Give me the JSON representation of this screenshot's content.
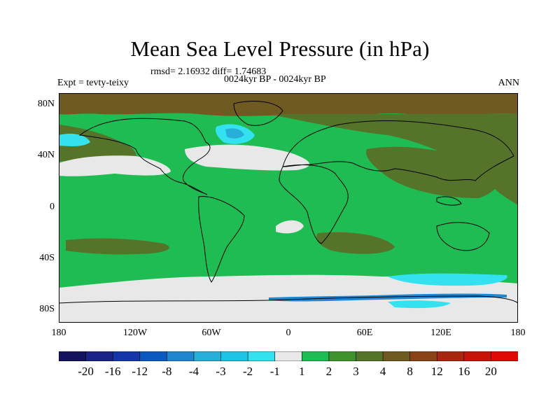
{
  "title": "Mean Sea Level Pressure (in hPa)",
  "stats": "rmsd= 2.16932 diff= 1.74683",
  "subtitle": "0024kyr BP - 0024kyr BP",
  "left_label": "Expt = tevty-teixy",
  "right_label": "ANN",
  "lat_labels": [
    "80N",
    "40N",
    "0",
    "40S",
    "80S"
  ],
  "lon_labels": [
    "180",
    "120W",
    "60W",
    "0",
    "60E",
    "120E",
    "180"
  ],
  "colorbar": {
    "labels": [
      "-20",
      "-16",
      "-12",
      "-8",
      "-4",
      "-3",
      "-2",
      "-1",
      "1",
      "2",
      "3",
      "4",
      "8",
      "12",
      "16",
      "20"
    ],
    "colors": [
      "#14135e",
      "#1b2389",
      "#1536a8",
      "#0b58c0",
      "#1f86cf",
      "#27aed9",
      "#1fc3e7",
      "#33e1ef",
      "#e8e8e8",
      "#1fbc53",
      "#3f932c",
      "#56732a",
      "#6f5a21",
      "#8a4317",
      "#a8270f",
      "#c61409",
      "#e00a05"
    ]
  }
}
